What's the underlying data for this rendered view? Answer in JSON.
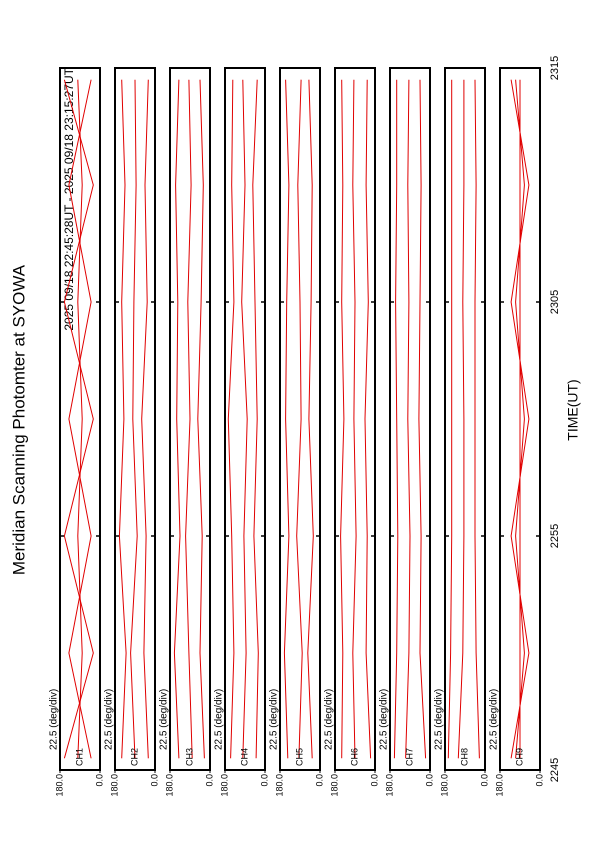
{
  "chart_data": {
    "type": "line",
    "title": "Meridian Scanning Photomter at SYOWA",
    "subtitle": "2025 09/18 22:45:28UT - 2025 09/18 23:15:27UT",
    "x_label": "TIME(UT)",
    "scale_label": "22.5 (deg/div)",
    "xlim": [
      0,
      30
    ],
    "xticks": [
      {
        "value": 0,
        "label": "2245"
      },
      {
        "value": 10,
        "label": "2255"
      },
      {
        "value": 20,
        "label": "2305"
      },
      {
        "value": 30,
        "label": "2315"
      }
    ],
    "ylim": [
      0,
      180
    ],
    "yticks": [
      {
        "value": 180,
        "label": "180.0"
      },
      {
        "value": 0,
        "label": "0.0"
      }
    ],
    "x": [
      0.5,
      5,
      10,
      15,
      20,
      25,
      29.5
    ],
    "color": "#e00000",
    "panels": [
      {
        "label": "CH1",
        "series": [
          {
            "values": [
              160,
              30,
              160,
              30,
              160,
              30,
              160
            ]
          },
          {
            "values": [
              100,
              80,
              100,
              80,
              100,
              80,
              100
            ]
          },
          {
            "values": [
              40,
              140,
              40,
              140,
              40,
              140,
              40
            ]
          }
        ]
      },
      {
        "label": "CH2",
        "series": [
          {
            "values": [
              150,
              130,
              160,
              140,
              150,
              135,
              150
            ]
          },
          {
            "values": [
              90,
              110,
              80,
              100,
              95,
              85,
              90
            ]
          },
          {
            "values": [
              30,
              50,
              40,
              60,
              35,
              45,
              30
            ]
          }
        ]
      },
      {
        "label": "CH3",
        "series": [
          {
            "values": [
              140,
              160,
              135,
              150,
              145,
              155,
              140
            ]
          },
          {
            "values": [
              80,
              95,
              110,
              90,
              100,
              85,
              95
            ]
          },
          {
            "values": [
              25,
              45,
              35,
              55,
              40,
              30,
              45
            ]
          }
        ]
      },
      {
        "label": "CH4",
        "series": [
          {
            "values": [
              155,
              140,
              150,
              165,
              140,
              150,
              145
            ]
          },
          {
            "values": [
              100,
              85,
              95,
              80,
              105,
              90,
              100
            ]
          },
          {
            "values": [
              40,
              30,
              50,
              35,
              45,
              55,
              35
            ]
          }
        ]
      },
      {
        "label": "CH5",
        "series": [
          {
            "values": [
              145,
              160,
              140,
              155,
              150,
              140,
              155
            ]
          },
          {
            "values": [
              95,
              80,
              105,
              85,
              90,
              100,
              85
            ]
          },
          {
            "values": [
              35,
              55,
              30,
              50,
              40,
              35,
              50
            ]
          }
        ]
      },
      {
        "label": "CH6",
        "series": [
          {
            "values": [
              150,
              145,
              155,
              140,
              150,
              145,
              150
            ]
          },
          {
            "values": [
              90,
              100,
              85,
              95,
              90,
              100,
              95
            ]
          },
          {
            "values": [
              20,
              40,
              35,
              45,
              30,
              40,
              35
            ]
          }
        ]
      },
      {
        "label": "CH7",
        "series": [
          {
            "values": [
              160,
              150,
              145,
              150,
              155,
              150,
              150
            ]
          },
          {
            "values": [
              110,
              95,
              90,
              100,
              95,
              100,
              95
            ]
          },
          {
            "values": [
              20,
              45,
              40,
              50,
              45,
              40,
              45
            ]
          }
        ]
      },
      {
        "label": "CH8",
        "series": [
          {
            "values": [
              165,
              155,
              150,
              150,
              150,
              150,
              150
            ]
          },
          {
            "values": [
              120,
              100,
              95,
              95,
              100,
              95,
              95
            ]
          },
          {
            "values": [
              25,
              40,
              45,
              45,
              45,
              40,
              45
            ]
          }
        ]
      },
      {
        "label": "CH9",
        "series": [
          {
            "values": [
              130,
              50,
              130,
              50,
              130,
              50,
              130
            ]
          },
          {
            "values": [
              110,
              70,
              110,
              70,
              110,
              70,
              110
            ]
          },
          {
            "values": [
              90,
              90,
              90,
              90,
              90,
              90,
              90
            ]
          }
        ]
      }
    ]
  }
}
